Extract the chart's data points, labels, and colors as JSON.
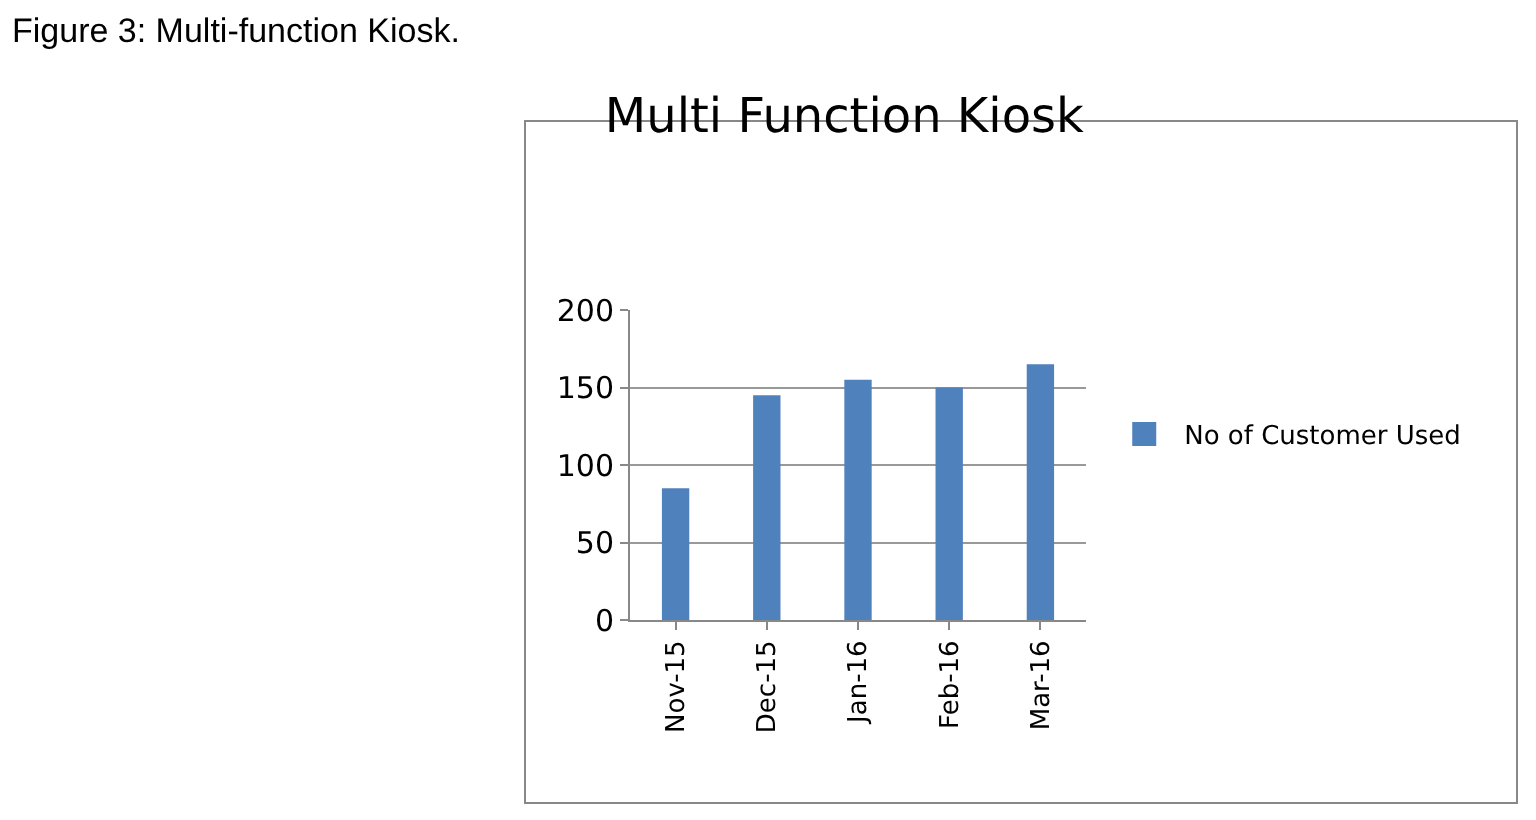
{
  "chart_data": {
    "type": "bar",
    "title": "Multi Function Kiosk",
    "annotations": [
      "Figure 3: Multi-function Kiosk."
    ],
    "categories": [
      "Nov-15",
      "Dec-15",
      "Jan-16",
      "Feb-16",
      "Mar-16"
    ],
    "series": [
      {
        "name": "No of Customer Used",
        "color": "#4f81bd",
        "values": [
          85,
          145,
          155,
          150,
          165
        ]
      }
    ],
    "ylim": [
      0,
      200
    ],
    "yticks": [
      0,
      50,
      100,
      150,
      200
    ],
    "grid": "y",
    "legend": "right"
  }
}
